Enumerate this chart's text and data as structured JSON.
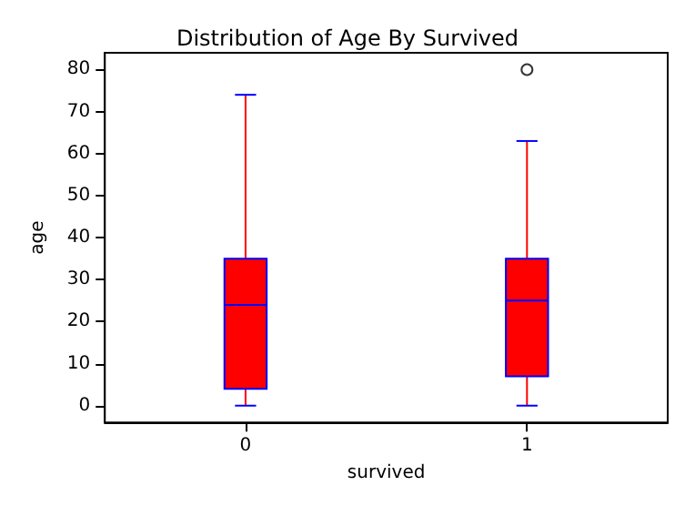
{
  "chart_data": {
    "type": "box",
    "title": "Distribution of Age By Survived",
    "xlabel": "survived",
    "ylabel": "age",
    "categories": [
      "0",
      "1"
    ],
    "series": [
      {
        "color": "#ff0000",
        "boxes": [
          {
            "low": 0,
            "q1": 4,
            "median": 24,
            "q3": 35,
            "high": 74
          },
          {
            "low": 0,
            "q1": 7,
            "median": 25,
            "q3": 35,
            "high": 63,
            "outliers": [
              80
            ]
          }
        ]
      }
    ],
    "ylim": [
      -4,
      84
    ],
    "yticks": [
      0,
      10,
      20,
      30,
      40,
      50,
      60,
      70,
      80
    ]
  }
}
